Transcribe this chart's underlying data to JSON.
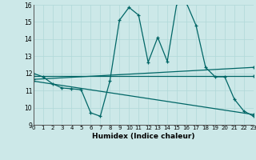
{
  "xlabel": "Humidex (Indice chaleur)",
  "bg_color": "#cce8e8",
  "grid_color": "#b0d8d8",
  "line_color": "#006666",
  "xlim": [
    0,
    23
  ],
  "ylim": [
    9,
    16
  ],
  "xticks": [
    0,
    1,
    2,
    3,
    4,
    5,
    6,
    7,
    8,
    9,
    10,
    11,
    12,
    13,
    14,
    15,
    16,
    17,
    18,
    19,
    20,
    21,
    22,
    23
  ],
  "yticks": [
    9,
    10,
    11,
    12,
    13,
    14,
    15,
    16
  ],
  "series": [
    {
      "x": [
        0,
        1,
        2,
        3,
        4,
        5,
        6,
        7,
        8,
        9,
        10,
        11,
        12,
        13,
        14,
        15,
        16,
        17,
        18,
        19,
        20,
        21,
        22,
        23
      ],
      "y": [
        12.0,
        11.8,
        11.4,
        11.15,
        11.1,
        11.05,
        9.7,
        9.5,
        11.55,
        15.1,
        15.85,
        15.4,
        12.65,
        14.1,
        12.7,
        16.1,
        16.1,
        14.8,
        12.35,
        11.8,
        11.8,
        10.5,
        9.8,
        9.5
      ]
    },
    {
      "x": [
        0,
        23
      ],
      "y": [
        11.85,
        11.85
      ]
    },
    {
      "x": [
        0,
        23
      ],
      "y": [
        11.65,
        12.35
      ]
    },
    {
      "x": [
        0,
        23
      ],
      "y": [
        11.55,
        9.6
      ]
    }
  ]
}
